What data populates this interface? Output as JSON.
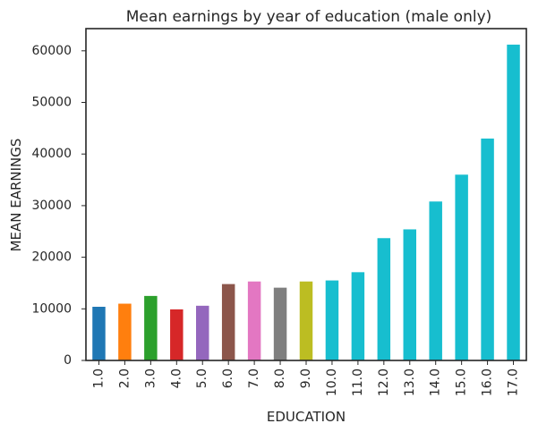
{
  "chart_data": {
    "type": "bar",
    "title": "Mean earnings by year of education (male only)",
    "xlabel": "EDUCATION",
    "ylabel": "MEAN EARNINGS",
    "categories": [
      "1.0",
      "2.0",
      "3.0",
      "4.0",
      "5.0",
      "6.0",
      "7.0",
      "8.0",
      "9.0",
      "10.0",
      "11.0",
      "12.0",
      "13.0",
      "14.0",
      "15.0",
      "16.0",
      "17.0"
    ],
    "values": [
      10400,
      11000,
      12500,
      9900,
      10600,
      14800,
      15300,
      14100,
      15300,
      15500,
      17100,
      23700,
      25400,
      30800,
      36000,
      43000,
      61200
    ],
    "colors": [
      "#1f77b4",
      "#ff7f0e",
      "#2ca02c",
      "#d62728",
      "#9467bd",
      "#8c564b",
      "#e377c2",
      "#7f7f7f",
      "#bcbd22",
      "#17becf",
      "#17becf",
      "#17becf",
      "#17becf",
      "#17becf",
      "#17becf",
      "#17becf",
      "#17becf"
    ],
    "yticks": [
      "0",
      "10000",
      "20000",
      "30000",
      "40000",
      "50000",
      "60000"
    ],
    "ylim": [
      0,
      64300
    ],
    "grid": false,
    "legend": "none"
  }
}
